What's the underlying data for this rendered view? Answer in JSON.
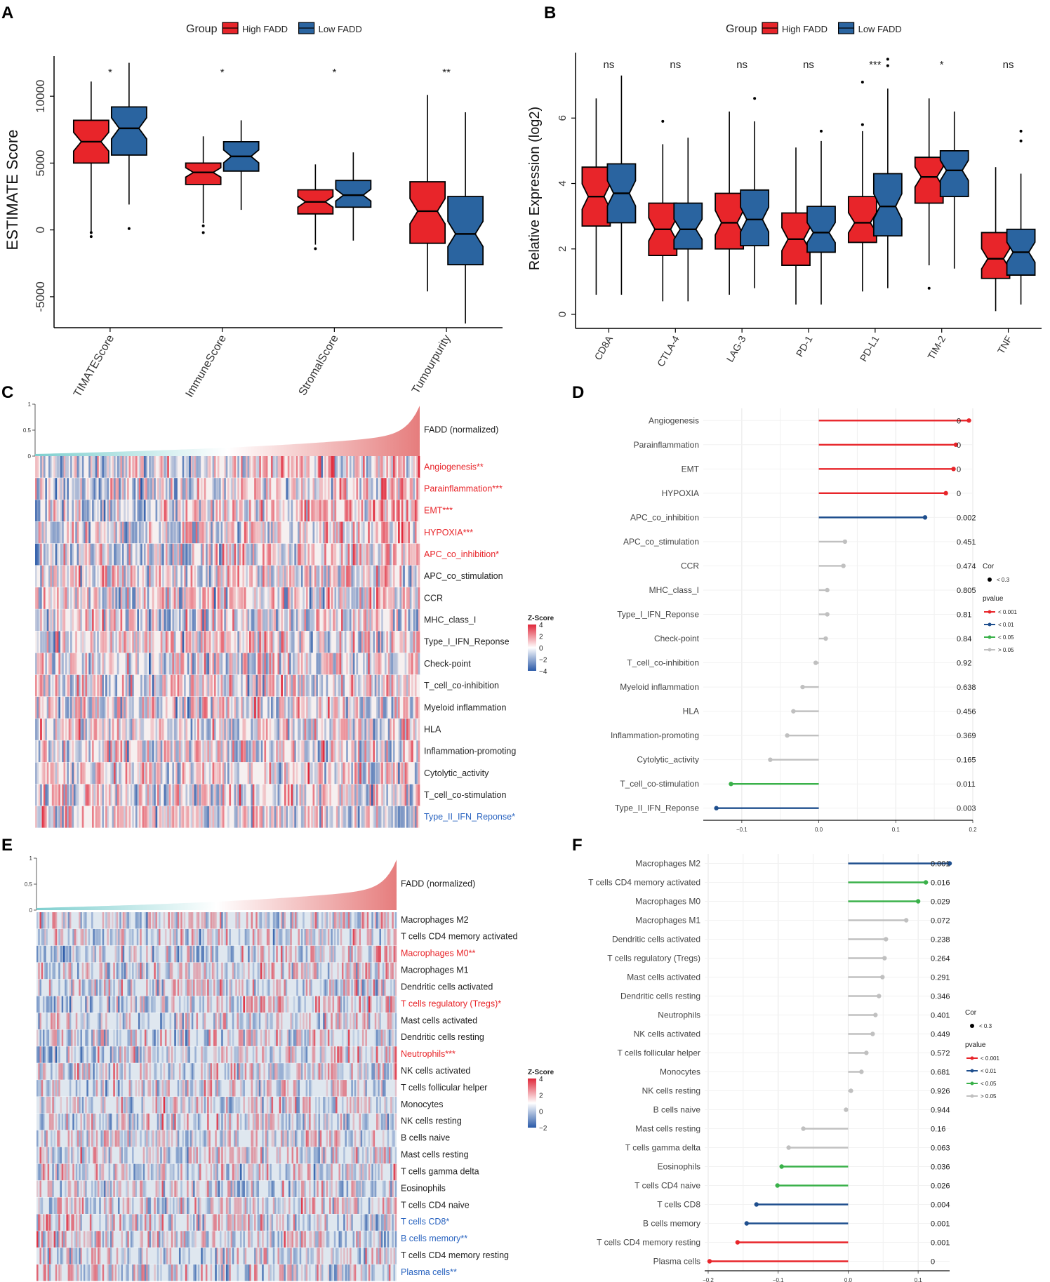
{
  "colors": {
    "high": "#e8252a",
    "low": "#2a64a0",
    "p001": "#e8252a",
    "p01": "#1f4f8e",
    "p05": "#3ab14a",
    "pns": "#c0c0c0",
    "red_text": "#e8252a",
    "blue_text": "#2a64c0",
    "hm_red": "#e0283a",
    "hm_blue": "#2a5aa8",
    "teal": "#7ecfcf",
    "salmon": "#e67d7d"
  },
  "chart_data": [
    {
      "panel": "A",
      "type": "box",
      "title": "",
      "ylabel": "ESTIMATE Score",
      "ylim": [
        -7000,
        13000
      ],
      "yticks": [
        -5000,
        0,
        5000,
        10000
      ],
      "legend": {
        "title": "Group",
        "items": [
          "High FADD",
          "Low FADD"
        ],
        "position": "top-center"
      },
      "categories": [
        "ESTIMATEScore",
        "ImmuneScore",
        "StromalScore",
        "TumourPurity"
      ],
      "category_labels_visible": [
        "TIMATEScore",
        "ImmuneScore",
        "StromalScore",
        "Tumourpurity"
      ],
      "significance": [
        "*",
        "*",
        "*",
        "**"
      ],
      "series": [
        {
          "name": "High FADD",
          "boxes": [
            {
              "min": -300,
              "q1": 5000,
              "med": 6600,
              "q3": 8200,
              "max": 11100,
              "outliers": [
                -200,
                -500
              ]
            },
            {
              "min": 500,
              "q1": 3400,
              "med": 4300,
              "q3": 5000,
              "max": 7000,
              "outliers": [
                300,
                -200
              ]
            },
            {
              "min": -1100,
              "q1": 1200,
              "med": 2100,
              "q3": 3000,
              "max": 4900,
              "outliers": [
                -1400
              ]
            },
            {
              "min": -4600,
              "q1": -1000,
              "med": 1400,
              "q3": 3600,
              "max": 10100,
              "outliers": []
            }
          ]
        },
        {
          "name": "Low FADD",
          "boxes": [
            {
              "min": 1900,
              "q1": 5600,
              "med": 7600,
              "q3": 9200,
              "max": 12500,
              "outliers": [
                100
              ]
            },
            {
              "min": 1500,
              "q1": 4400,
              "med": 5500,
              "q3": 6600,
              "max": 8200,
              "outliers": []
            },
            {
              "min": -800,
              "q1": 1700,
              "med": 2600,
              "q3": 3700,
              "max": 5800,
              "outliers": []
            },
            {
              "min": -7000,
              "q1": -2600,
              "med": -300,
              "q3": 2500,
              "max": 8800,
              "outliers": []
            }
          ]
        }
      ]
    },
    {
      "panel": "B",
      "type": "box",
      "title": "",
      "ylabel": "Relative Expression (log2)",
      "ylim": [
        -0.3,
        8
      ],
      "yticks": [
        0,
        2,
        4,
        6
      ],
      "legend": {
        "title": "Group",
        "items": [
          "High FADD",
          "Low FADD"
        ],
        "position": "top-center"
      },
      "categories": [
        "CD8A",
        "CTLA-4",
        "LAG-3",
        "PD-1",
        "PD-L1",
        "TIM-2",
        "TNF"
      ],
      "significance": [
        "ns",
        "ns",
        "ns",
        "ns",
        "***",
        "*",
        "ns"
      ],
      "series": [
        {
          "name": "High FADD",
          "boxes": [
            {
              "min": 0.6,
              "q1": 2.7,
              "med": 3.6,
              "q3": 4.5,
              "max": 6.6,
              "outliers": []
            },
            {
              "min": 0.4,
              "q1": 1.8,
              "med": 2.6,
              "q3": 3.4,
              "max": 5.2,
              "outliers": [
                5.9
              ]
            },
            {
              "min": 0.6,
              "q1": 2.0,
              "med": 2.8,
              "q3": 3.7,
              "max": 6.2,
              "outliers": []
            },
            {
              "min": 0.3,
              "q1": 1.5,
              "med": 2.3,
              "q3": 3.1,
              "max": 5.1,
              "outliers": []
            },
            {
              "min": 0.7,
              "q1": 2.2,
              "med": 2.8,
              "q3": 3.6,
              "max": 5.6,
              "outliers": [
                5.8,
                7.1
              ]
            },
            {
              "min": 1.5,
              "q1": 3.4,
              "med": 4.2,
              "q3": 4.8,
              "max": 6.6,
              "outliers": [
                0.8
              ]
            },
            {
              "min": 0.1,
              "q1": 1.1,
              "med": 1.7,
              "q3": 2.5,
              "max": 4.5,
              "outliers": []
            }
          ]
        },
        {
          "name": "Low FADD",
          "boxes": [
            {
              "min": 0.6,
              "q1": 2.8,
              "med": 3.7,
              "q3": 4.6,
              "max": 7.3,
              "outliers": []
            },
            {
              "min": 0.4,
              "q1": 2.0,
              "med": 2.6,
              "q3": 3.4,
              "max": 5.4,
              "outliers": []
            },
            {
              "min": 0.8,
              "q1": 2.1,
              "med": 2.9,
              "q3": 3.8,
              "max": 5.9,
              "outliers": [
                6.6
              ]
            },
            {
              "min": 0.3,
              "q1": 1.9,
              "med": 2.5,
              "q3": 3.3,
              "max": 5.3,
              "outliers": [
                5.6
              ]
            },
            {
              "min": 0.8,
              "q1": 2.4,
              "med": 3.3,
              "q3": 4.3,
              "max": 6.9,
              "outliers": [
                7.6,
                7.8
              ]
            },
            {
              "min": 1.4,
              "q1": 3.6,
              "med": 4.4,
              "q3": 5.0,
              "max": 6.2,
              "outliers": []
            },
            {
              "min": 0.3,
              "q1": 1.2,
              "med": 1.9,
              "q3": 2.6,
              "max": 4.3,
              "outliers": [
                5.3,
                5.6
              ]
            }
          ]
        }
      ]
    },
    {
      "panel": "C",
      "type": "heatmap",
      "topbar_label": "FADD (normalized)",
      "topbar_ticks": [
        "1",
        "0.5",
        "0"
      ],
      "legend": {
        "title": "Z-Score",
        "ticks": [
          "4",
          "2",
          "0",
          "−2",
          "−4"
        ]
      },
      "rows": [
        {
          "name": "Angiogenesis**",
          "sig": "red"
        },
        {
          "name": "Parainflammation***",
          "sig": "red"
        },
        {
          "name": "EMT***",
          "sig": "red"
        },
        {
          "name": "HYPOXIA***",
          "sig": "red"
        },
        {
          "name": "APC_co_inhibition*",
          "sig": "red"
        },
        {
          "name": "APC_co_stimulation",
          "sig": "none"
        },
        {
          "name": "CCR",
          "sig": "none"
        },
        {
          "name": "MHC_class_I",
          "sig": "none"
        },
        {
          "name": "Type_I_IFN_Reponse",
          "sig": "none"
        },
        {
          "name": "Check-point",
          "sig": "none"
        },
        {
          "name": "T_cell_co-inhibition",
          "sig": "none"
        },
        {
          "name": "Myeloid inflammation",
          "sig": "none"
        },
        {
          "name": "HLA",
          "sig": "none"
        },
        {
          "name": "Inflammation-promoting",
          "sig": "none"
        },
        {
          "name": "Cytolytic_activity",
          "sig": "none"
        },
        {
          "name": "T_cell_co-stimulation",
          "sig": "none"
        },
        {
          "name": "Type_II_IFN_Reponse*",
          "sig": "blue"
        }
      ]
    },
    {
      "panel": "D",
      "type": "lollipop",
      "xlim": [
        -0.15,
        0.2
      ],
      "xticks": [
        "−0.1",
        "0.0",
        "0.1",
        "0.2"
      ],
      "legend": {
        "cor_title": "Cor",
        "cor_item": "< 0.3",
        "p_title": "pvalue",
        "p_items": [
          "< 0.001",
          "< 0.01",
          "< 0.05",
          "> 0.05"
        ]
      },
      "items": [
        {
          "name": "Angiogenesis",
          "r": 0.195,
          "p": "0",
          "cat": "p001"
        },
        {
          "name": "Parainflammation",
          "r": 0.178,
          "p": "0",
          "cat": "p001"
        },
        {
          "name": "EMT",
          "r": 0.175,
          "p": "0",
          "cat": "p001"
        },
        {
          "name": "HYPOXIA",
          "r": 0.165,
          "p": "0",
          "cat": "p001"
        },
        {
          "name": "APC_co_inhibition",
          "r": 0.138,
          "p": "0.002",
          "cat": "p01"
        },
        {
          "name": "APC_co_stimulation",
          "r": 0.034,
          "p": "0.451",
          "cat": "pns"
        },
        {
          "name": "CCR",
          "r": 0.032,
          "p": "0.474",
          "cat": "pns"
        },
        {
          "name": "MHC_class_I",
          "r": 0.011,
          "p": "0.805",
          "cat": "pns"
        },
        {
          "name": "Type_I_IFN_Reponse",
          "r": 0.011,
          "p": "0.81",
          "cat": "pns"
        },
        {
          "name": "Check-point",
          "r": 0.009,
          "p": "0.84",
          "cat": "pns"
        },
        {
          "name": "T_cell_co-inhibition",
          "r": -0.004,
          "p": "0.92",
          "cat": "pns"
        },
        {
          "name": "Myeloid inflammation",
          "r": -0.021,
          "p": "0.638",
          "cat": "pns"
        },
        {
          "name": "HLA",
          "r": -0.033,
          "p": "0.456",
          "cat": "pns"
        },
        {
          "name": "Inflammation-promoting",
          "r": -0.041,
          "p": "0.369",
          "cat": "pns"
        },
        {
          "name": "Cytolytic_activity",
          "r": -0.063,
          "p": "0.165",
          "cat": "pns"
        },
        {
          "name": "T_cell_co-stimulation",
          "r": -0.114,
          "p": "0.011",
          "cat": "p05"
        },
        {
          "name": "Type_II_IFN_Reponse",
          "r": -0.133,
          "p": "0.003",
          "cat": "p01"
        }
      ]
    },
    {
      "panel": "E",
      "type": "heatmap",
      "topbar_label": "FADD (normalized)",
      "topbar_ticks": [
        "1",
        "0.5",
        "0"
      ],
      "legend": {
        "title": "Z-Score",
        "ticks": [
          "4",
          "2",
          "0",
          "−2"
        ]
      },
      "rows": [
        {
          "name": "Macrophages M2",
          "sig": "none"
        },
        {
          "name": "T cells CD4 memory activated",
          "sig": "none"
        },
        {
          "name": "Macrophages M0**",
          "sig": "red"
        },
        {
          "name": "Macrophages M1",
          "sig": "none"
        },
        {
          "name": "Dendritic cells activated",
          "sig": "none"
        },
        {
          "name": "T cells regulatory (Tregs)*",
          "sig": "red"
        },
        {
          "name": "Mast cells activated",
          "sig": "none"
        },
        {
          "name": "Dendritic cells resting",
          "sig": "none"
        },
        {
          "name": "Neutrophils***",
          "sig": "red"
        },
        {
          "name": "NK cells activated",
          "sig": "none"
        },
        {
          "name": "T cells follicular helper",
          "sig": "none"
        },
        {
          "name": "Monocytes",
          "sig": "none"
        },
        {
          "name": "NK cells resting",
          "sig": "none"
        },
        {
          "name": "B cells naive",
          "sig": "none"
        },
        {
          "name": "Mast cells resting",
          "sig": "none"
        },
        {
          "name": "T cells gamma delta",
          "sig": "none"
        },
        {
          "name": "Eosinophils",
          "sig": "none"
        },
        {
          "name": "T cells CD4 naive",
          "sig": "none"
        },
        {
          "name": "T cells CD8*",
          "sig": "blue"
        },
        {
          "name": "B cells memory**",
          "sig": "blue"
        },
        {
          "name": "T cells CD4 memory resting",
          "sig": "none"
        },
        {
          "name": "Plasma cells**",
          "sig": "blue"
        }
      ]
    },
    {
      "panel": "F",
      "type": "lollipop",
      "xlim": [
        -0.205,
        0.145
      ],
      "xticks": [
        "−0.2",
        "−0.1",
        "0.0",
        "0.1"
      ],
      "legend": {
        "cor_title": "Cor",
        "cor_item": "< 0.3",
        "p_title": "pvalue",
        "p_items": [
          "< 0.001",
          "< 0.01",
          "< 0.05",
          "> 0.05"
        ]
      },
      "items": [
        {
          "name": "Macrophages M2",
          "r": 0.145,
          "p": "0.001",
          "cat": "p01"
        },
        {
          "name": "T cells CD4 memory activated",
          "r": 0.111,
          "p": "0.016",
          "cat": "p05"
        },
        {
          "name": "Macrophages M0",
          "r": 0.1,
          "p": "0.029",
          "cat": "p05"
        },
        {
          "name": "Macrophages M1",
          "r": 0.083,
          "p": "0.072",
          "cat": "pns"
        },
        {
          "name": "Dendritic cells activated",
          "r": 0.054,
          "p": "0.238",
          "cat": "pns"
        },
        {
          "name": "T cells regulatory (Tregs)",
          "r": 0.052,
          "p": "0.264",
          "cat": "pns"
        },
        {
          "name": "Mast cells activated",
          "r": 0.049,
          "p": "0.291",
          "cat": "pns"
        },
        {
          "name": "Dendritic cells resting",
          "r": 0.044,
          "p": "0.346",
          "cat": "pns"
        },
        {
          "name": "Neutrophils",
          "r": 0.039,
          "p": "0.401",
          "cat": "pns"
        },
        {
          "name": "NK cells activated",
          "r": 0.035,
          "p": "0.449",
          "cat": "pns"
        },
        {
          "name": "T cells follicular helper",
          "r": 0.026,
          "p": "0.572",
          "cat": "pns"
        },
        {
          "name": "Monocytes",
          "r": 0.019,
          "p": "0.681",
          "cat": "pns"
        },
        {
          "name": "NK cells resting",
          "r": 0.004,
          "p": "0.926",
          "cat": "pns"
        },
        {
          "name": "B cells naive",
          "r": -0.003,
          "p": "0.944",
          "cat": "pns"
        },
        {
          "name": "Mast cells resting",
          "r": -0.064,
          "p": "0.16",
          "cat": "pns"
        },
        {
          "name": "T cells gamma delta",
          "r": -0.085,
          "p": "0.063",
          "cat": "pns"
        },
        {
          "name": "Eosinophils",
          "r": -0.095,
          "p": "0.036",
          "cat": "p05"
        },
        {
          "name": "T cells CD4 naive",
          "r": -0.101,
          "p": "0.026",
          "cat": "p05"
        },
        {
          "name": "T cells CD8",
          "r": -0.131,
          "p": "0.004",
          "cat": "p01"
        },
        {
          "name": "B cells memory",
          "r": -0.145,
          "p": "0.001",
          "cat": "p01"
        },
        {
          "name": "T cells CD4 memory resting",
          "r": -0.158,
          "p": "0.001",
          "cat": "p001"
        },
        {
          "name": "Plasma cells",
          "r": -0.198,
          "p": "0",
          "cat": "p001"
        }
      ]
    }
  ],
  "panel_labels": [
    "A",
    "B",
    "C",
    "D",
    "E",
    "F"
  ]
}
